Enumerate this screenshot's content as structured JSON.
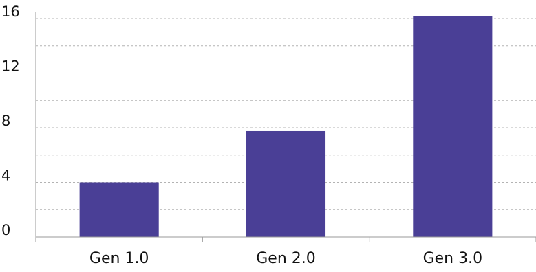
{
  "chart_data": {
    "type": "bar",
    "categories": [
      "Gen 1.0",
      "Gen 2.0",
      "Gen 3.0"
    ],
    "values": [
      4.0,
      7.8,
      16.2
    ],
    "ylim": [
      0,
      16
    ],
    "yticks": [
      "0",
      "4",
      "8",
      "12",
      "16"
    ],
    "title": "",
    "xlabel": "",
    "ylabel": "",
    "grid": "horizontal dashed, every 2 units",
    "colors": {
      "bar": "#4a3f96",
      "grid": "#b3b3b3",
      "axis": "#999999"
    }
  }
}
